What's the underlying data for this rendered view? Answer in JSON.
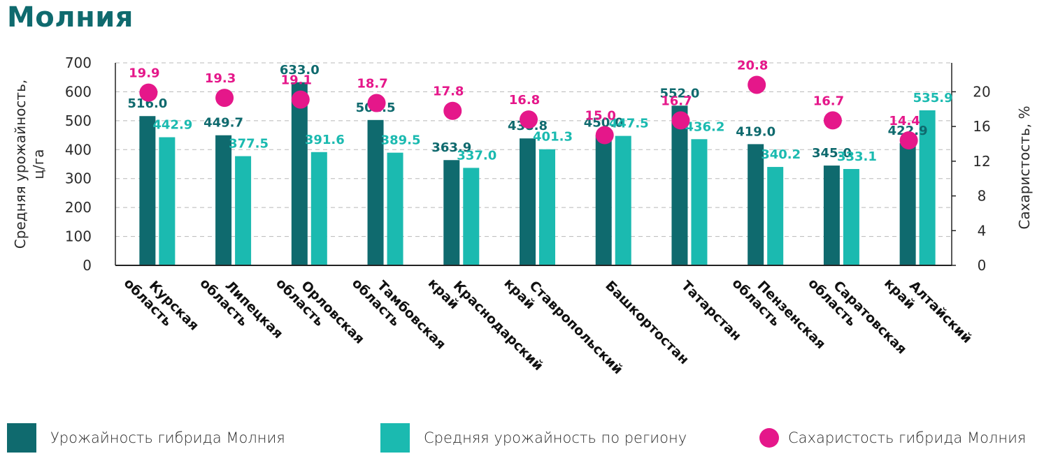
{
  "title": "Молния",
  "colors": {
    "hybrid": "#0f6a6e",
    "region": "#1bbab0",
    "sugar": "#e5178a",
    "axis": "#222222",
    "grid": "#b8b8b8"
  },
  "chart_data": {
    "type": "bar",
    "title": "Молния",
    "ylabel": "Средняя урожайность, ц/га",
    "y2label": "Сахаристость, %",
    "ylim": [
      0,
      700
    ],
    "yticks": [
      0,
      100,
      200,
      300,
      400,
      500,
      600,
      700
    ],
    "y2lim": [
      0,
      23.33
    ],
    "y2ticks": [
      0,
      4,
      8,
      12,
      16,
      20
    ],
    "grid": true,
    "legend_position": "bottom",
    "categories": [
      [
        "Курская",
        "область"
      ],
      [
        "Липецкая",
        "область"
      ],
      [
        "Орловская",
        "область"
      ],
      [
        "Тамбовская",
        "область"
      ],
      [
        "Краснодарский",
        "край"
      ],
      [
        "Ставропольский",
        "край"
      ],
      [
        "Башкортостан"
      ],
      [
        "Татарстан"
      ],
      [
        "Пензенская",
        "область"
      ],
      [
        "Саратовская",
        "область"
      ],
      [
        "Алтайский",
        "край"
      ]
    ],
    "series": [
      {
        "name": "Урожайность гибрида Молния",
        "type": "bar",
        "axis": "left",
        "values": [
          516.0,
          449.7,
          633.0,
          502.5,
          363.9,
          438.8,
          450.0,
          552.0,
          419.0,
          345.0,
          422.9
        ],
        "labels": [
          "516.0",
          "449.7",
          "633.0",
          "502.5",
          "363.9",
          "438.8",
          "450.0",
          "552.0",
          "419.0",
          "345.0",
          "422.9"
        ]
      },
      {
        "name": "Средняя урожайность по региону",
        "type": "bar",
        "axis": "left",
        "values": [
          442.9,
          377.5,
          391.6,
          389.5,
          337.0,
          401.3,
          447.5,
          436.2,
          340.2,
          333.1,
          535.9
        ],
        "labels": [
          "442.9",
          "377.5",
          "391.6",
          "389.5",
          "337.0",
          "401.3",
          "447.5",
          "436.2",
          "340.2",
          "333.1",
          "535.9"
        ]
      },
      {
        "name": "Сахаристость гибрида Молния",
        "type": "scatter",
        "axis": "right",
        "values": [
          19.9,
          19.3,
          19.1,
          18.7,
          17.8,
          16.8,
          15.0,
          16.7,
          20.8,
          16.7,
          14.4
        ],
        "labels": [
          "19.9",
          "19.3",
          "19.1",
          "18.7",
          "17.8",
          "16.8",
          "15.0",
          "16.7",
          "20.8",
          "16.7",
          "14.4"
        ]
      }
    ]
  },
  "legend": [
    {
      "label": "Урожайность гибрида Молния"
    },
    {
      "label": "Средняя урожайность по региону"
    },
    {
      "label": "Сахаристость гибрида Молния"
    }
  ]
}
